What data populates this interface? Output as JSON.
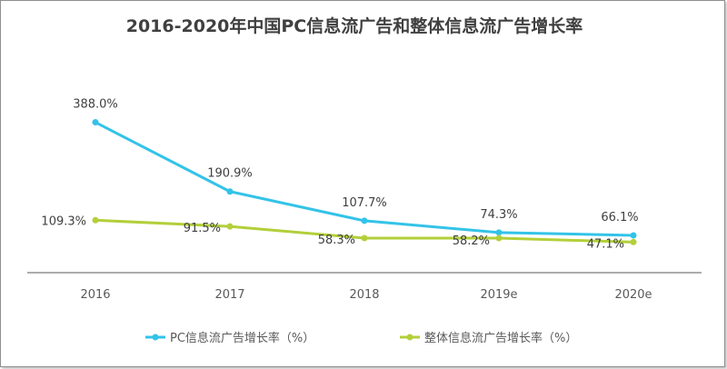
{
  "chart_data": {
    "type": "line",
    "title": "2016-2020年中国PC信息流广告和整体信息流广告增长率",
    "categories": [
      "2016",
      "2017",
      "2018",
      "2019e",
      "2020e"
    ],
    "series": [
      {
        "name": "PC信息流广告增长率（%）",
        "color": "#33c3e8",
        "values": [
          388.0,
          190.9,
          107.7,
          74.3,
          66.1
        ],
        "labels": [
          "388.0%",
          "190.9%",
          "107.7%",
          "74.3%",
          "66.1%"
        ]
      },
      {
        "name": "整体信息流广告增长率（%）",
        "color": "#b3cf3a",
        "values": [
          109.3,
          91.5,
          58.3,
          58.2,
          47.1
        ],
        "labels": [
          "109.3%",
          "91.5%",
          "58.3%",
          "58.2%",
          "47.1%"
        ]
      }
    ],
    "ylim": [
      -40,
      480
    ],
    "grid": false,
    "legend": "bottom"
  }
}
